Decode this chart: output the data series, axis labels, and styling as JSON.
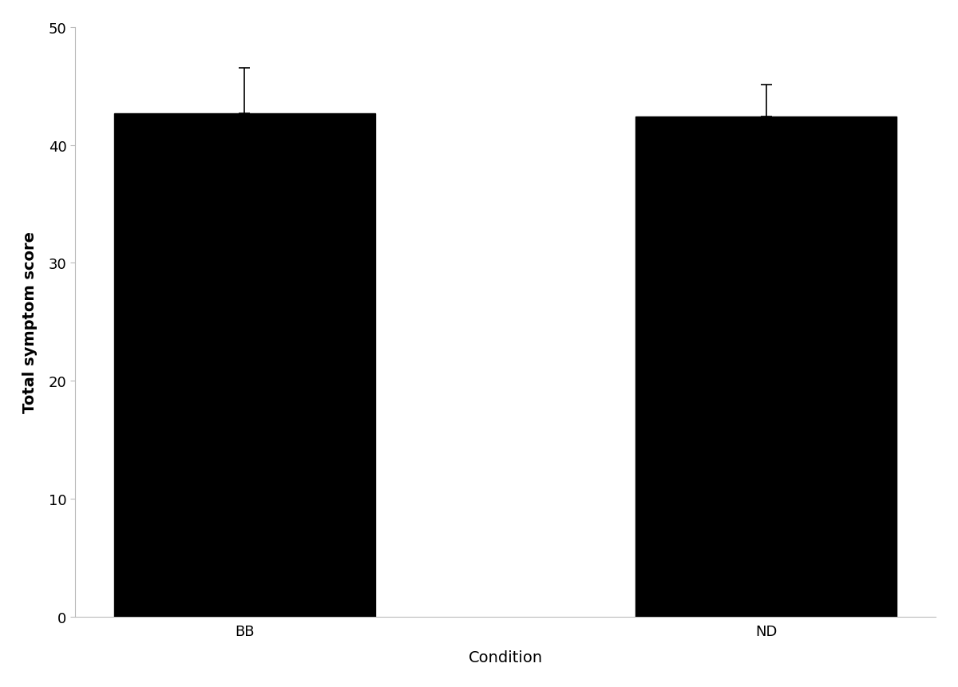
{
  "categories": [
    "BB",
    "ND"
  ],
  "values": [
    42.7,
    42.4
  ],
  "errors": [
    3.8,
    2.7
  ],
  "bar_color": "#000000",
  "bar_width": 0.5,
  "xlabel": "Condition",
  "ylabel": "Total symptom score",
  "ylim": [
    0,
    50
  ],
  "yticks": [
    0,
    10,
    20,
    30,
    40,
    50
  ],
  "background_color": "#ffffff",
  "xlabel_fontsize": 14,
  "ylabel_fontsize": 14,
  "tick_fontsize": 13,
  "error_capsize": 5,
  "error_color": "#000000",
  "error_linewidth": 1.2
}
